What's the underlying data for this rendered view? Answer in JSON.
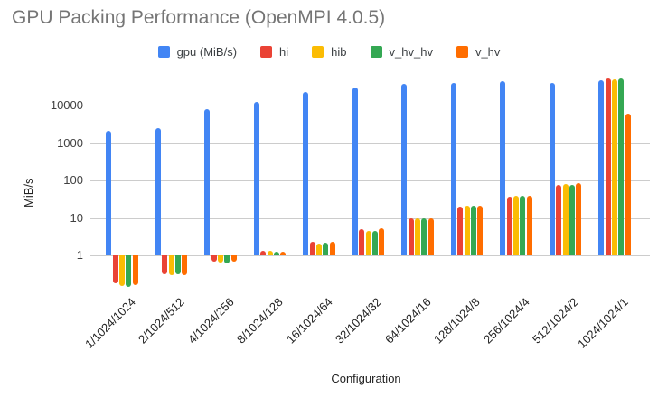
{
  "chart_data": {
    "type": "bar",
    "title": "GPU Packing Performance (OpenMPI 4.0.5)",
    "xlabel": "Configuration",
    "ylabel": "MiB/s",
    "y_scale": "log",
    "y_ticks": [
      1,
      10,
      100,
      1000,
      10000
    ],
    "ylim": [
      0.1,
      60000
    ],
    "grid": true,
    "legend_position": "top",
    "categories": [
      "1/1024/1024",
      "2/1024/512",
      "4/1024/256",
      "8/1024/128",
      "16/1024/64",
      "32/1024/32",
      "64/1024/16",
      "128/1024/8",
      "256/1024/4",
      "512/1024/2",
      "1024/1024/1"
    ],
    "series": [
      {
        "name": "gpu (MiB/s)",
        "color": "#4285F4",
        "values": [
          2100,
          2500,
          8000,
          12500,
          23000,
          30000,
          38000,
          41000,
          45000,
          41000,
          47000
        ]
      },
      {
        "name": "hi",
        "color": "#EA4335",
        "values": [
          0.18,
          0.31,
          0.68,
          1.3,
          2.3,
          5.0,
          10,
          20,
          36,
          74,
          52000
        ]
      },
      {
        "name": "hib",
        "color": "#FBBC04",
        "values": [
          0.15,
          0.29,
          0.65,
          1.3,
          2.1,
          4.6,
          10,
          21,
          39,
          81,
          50000
        ]
      },
      {
        "name": "v_hv_hv",
        "color": "#34A853",
        "values": [
          0.14,
          0.32,
          0.62,
          1.25,
          2.2,
          4.6,
          10,
          21,
          39,
          77,
          52000
        ]
      },
      {
        "name": "v_hv",
        "color": "#FF6D00",
        "values": [
          0.16,
          0.3,
          0.68,
          1.25,
          2.3,
          5.3,
          10,
          21,
          39,
          84,
          6000
        ]
      }
    ]
  }
}
